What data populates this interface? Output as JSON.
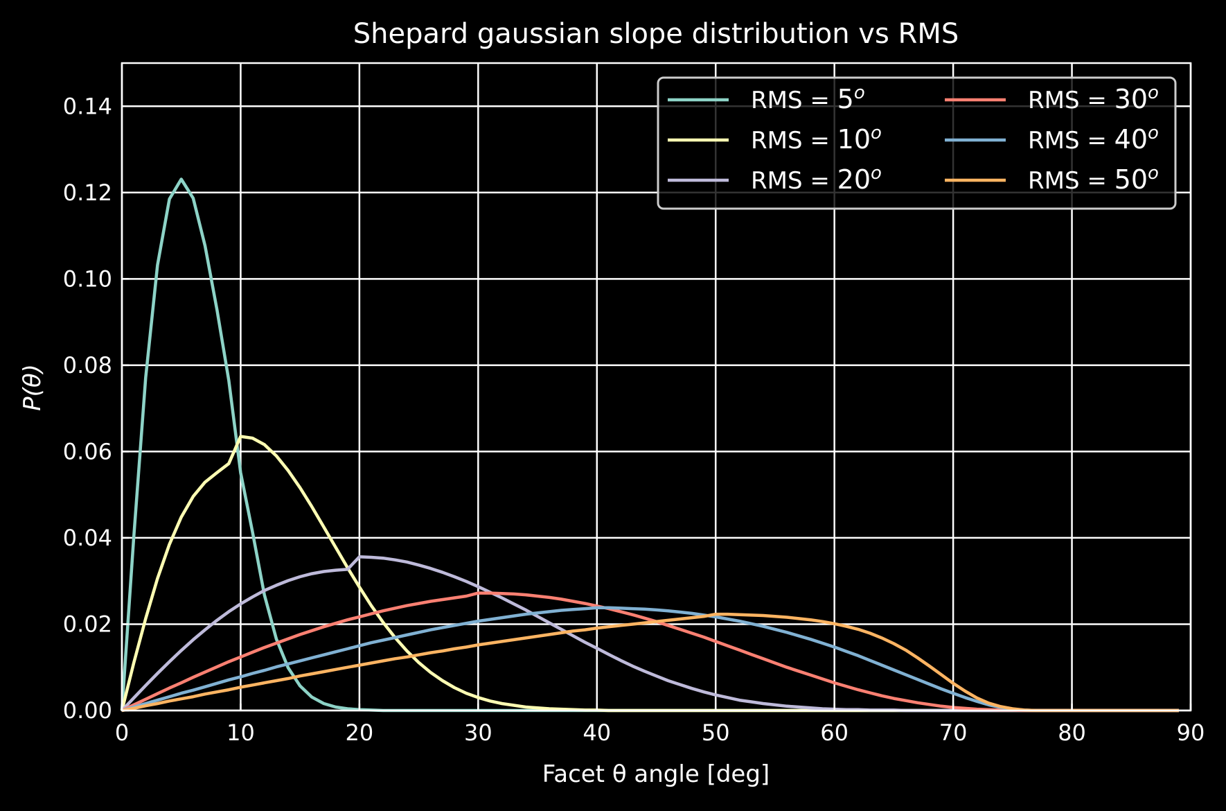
{
  "chart_data": {
    "type": "line",
    "title": "Shepard gaussian slope distribution vs RMS",
    "xlabel": "Facet θ angle [deg]",
    "ylabel": "P(θ)",
    "xlim": [
      0,
      90
    ],
    "ylim": [
      0,
      0.15
    ],
    "xticks": [
      0,
      10,
      20,
      30,
      40,
      50,
      60,
      70,
      80,
      90
    ],
    "xtick_labels": [
      "0",
      "10",
      "20",
      "30",
      "40",
      "50",
      "60",
      "70",
      "80",
      "90"
    ],
    "yticks": [
      0,
      0.02,
      0.04,
      0.06,
      0.08,
      0.1,
      0.12,
      0.14
    ],
    "ytick_labels": [
      "0.00",
      "0.02",
      "0.04",
      "0.06",
      "0.08",
      "0.10",
      "0.12",
      "0.14"
    ],
    "grid": true,
    "legend_position": "top-right",
    "legend_columns": 2,
    "x": [
      0,
      1,
      2,
      3,
      4,
      5,
      6,
      7,
      8,
      9,
      10,
      11,
      12,
      13,
      14,
      15,
      16,
      17,
      18,
      19,
      20,
      21,
      22,
      23,
      24,
      25,
      26,
      27,
      28,
      29,
      30,
      31,
      32,
      33,
      34,
      35,
      36,
      37,
      38,
      39,
      40,
      41,
      42,
      43,
      44,
      45,
      46,
      47,
      48,
      49,
      50,
      51,
      52,
      53,
      54,
      55,
      56,
      57,
      58,
      59,
      60,
      61,
      62,
      63,
      64,
      65,
      66,
      67,
      68,
      69,
      70,
      71,
      72,
      73,
      74,
      75,
      76,
      77,
      78,
      79,
      80,
      81,
      82,
      83,
      84,
      85,
      86,
      87,
      88,
      89
    ],
    "series": [
      {
        "name": "RMS = 5",
        "legend_prefix": "RMS = ",
        "legend_value": "5",
        "legend_superscript": "o",
        "color": "#8dd3c7",
        "values": [
          0.0,
          0.0401,
          0.0771,
          0.1032,
          0.1185,
          0.1231,
          0.1187,
          0.1077,
          0.0929,
          0.0765,
          0.0551,
          0.0413,
          0.0268,
          0.0166,
          0.0099,
          0.0057,
          0.0031,
          0.0016,
          0.0008,
          0.0004,
          0.0002,
          0.0001,
          0.0,
          0.0,
          0.0,
          0.0,
          0.0,
          0.0,
          0.0,
          0.0,
          0.0,
          0.0,
          0.0,
          0.0,
          0.0,
          0.0,
          0.0,
          0.0,
          0.0,
          0.0,
          0.0,
          0.0,
          0.0,
          0.0,
          0.0,
          0.0,
          0.0,
          0.0,
          0.0,
          0.0,
          0.0,
          0.0,
          0.0,
          0.0,
          0.0,
          0.0,
          0.0,
          0.0,
          0.0,
          0.0,
          0.0,
          0.0,
          0.0,
          0.0,
          0.0,
          0.0,
          0.0,
          0.0,
          0.0,
          0.0,
          0.0,
          0.0,
          0.0,
          0.0,
          0.0,
          0.0,
          0.0,
          0.0,
          0.0,
          0.0,
          0.0,
          0.0,
          0.0,
          0.0,
          0.0,
          0.0,
          0.0,
          0.0,
          0.0,
          0.0
        ]
      },
      {
        "name": "RMS = 10",
        "legend_prefix": "RMS = ",
        "legend_value": "10",
        "legend_superscript": "o",
        "color": "#ffffb3",
        "values": [
          0.0,
          0.011,
          0.0213,
          0.0306,
          0.0385,
          0.0448,
          0.0496,
          0.0529,
          0.0551,
          0.0572,
          0.0635,
          0.0631,
          0.0616,
          0.059,
          0.0556,
          0.0516,
          0.0472,
          0.0425,
          0.0378,
          0.0331,
          0.0286,
          0.0243,
          0.0204,
          0.0169,
          0.0138,
          0.0111,
          0.0088,
          0.0069,
          0.0053,
          0.004,
          0.003,
          0.0022,
          0.0016,
          0.0012,
          0.0008,
          0.0006,
          0.0004,
          0.0003,
          0.0002,
          0.0001,
          0.0001,
          0.0,
          0.0,
          0.0,
          0.0,
          0.0,
          0.0,
          0.0,
          0.0,
          0.0,
          0.0,
          0.0,
          0.0,
          0.0,
          0.0,
          0.0,
          0.0,
          0.0,
          0.0,
          0.0,
          0.0,
          0.0,
          0.0,
          0.0,
          0.0,
          0.0,
          0.0,
          0.0,
          0.0,
          0.0,
          0.0,
          0.0,
          0.0,
          0.0,
          0.0,
          0.0,
          0.0,
          0.0,
          0.0,
          0.0,
          0.0,
          0.0,
          0.0,
          0.0,
          0.0,
          0.0,
          0.0,
          0.0,
          0.0,
          0.0
        ]
      },
      {
        "name": "RMS = 20",
        "legend_prefix": "RMS = ",
        "legend_value": "20",
        "legend_superscript": "o",
        "color": "#bebada",
        "values": [
          0.0,
          0.0029,
          0.0058,
          0.0086,
          0.0113,
          0.0139,
          0.0164,
          0.0187,
          0.0209,
          0.0229,
          0.0247,
          0.0263,
          0.0278,
          0.029,
          0.0301,
          0.031,
          0.0317,
          0.0322,
          0.0325,
          0.0327,
          0.0356,
          0.0355,
          0.0353,
          0.0349,
          0.0344,
          0.0337,
          0.0329,
          0.032,
          0.031,
          0.0299,
          0.0287,
          0.0274,
          0.0261,
          0.0247,
          0.0233,
          0.0218,
          0.0203,
          0.0188,
          0.0173,
          0.0158,
          0.0144,
          0.013,
          0.0116,
          0.0103,
          0.0091,
          0.008,
          0.0069,
          0.006,
          0.0051,
          0.0043,
          0.0036,
          0.003,
          0.0024,
          0.002,
          0.0016,
          0.0013,
          0.001,
          0.0008,
          0.0006,
          0.0004,
          0.0003,
          0.0002,
          0.0002,
          0.0001,
          0.0001,
          0.0001,
          0.0,
          0.0,
          0.0,
          0.0,
          0.0,
          0.0,
          0.0,
          0.0,
          0.0,
          0.0,
          0.0,
          0.0,
          0.0,
          0.0,
          0.0,
          0.0,
          0.0,
          0.0,
          0.0,
          0.0,
          0.0,
          0.0,
          0.0,
          0.0
        ]
      },
      {
        "name": "RMS = 30",
        "legend_prefix": "RMS = ",
        "legend_value": "30",
        "legend_superscript": "o",
        "color": "#fb8072",
        "values": [
          0.0,
          0.0013,
          0.0026,
          0.0039,
          0.0052,
          0.0064,
          0.0077,
          0.0089,
          0.0101,
          0.0113,
          0.0124,
          0.0135,
          0.0146,
          0.0156,
          0.0166,
          0.0176,
          0.0185,
          0.0194,
          0.0202,
          0.021,
          0.0217,
          0.0224,
          0.0231,
          0.0237,
          0.0243,
          0.0248,
          0.0253,
          0.0257,
          0.0261,
          0.0265,
          0.0272,
          0.0272,
          0.0271,
          0.027,
          0.0268,
          0.0265,
          0.0262,
          0.0258,
          0.0253,
          0.0248,
          0.0242,
          0.0236,
          0.0229,
          0.0222,
          0.0214,
          0.0206,
          0.0197,
          0.0188,
          0.0179,
          0.017,
          0.016,
          0.015,
          0.014,
          0.013,
          0.012,
          0.011,
          0.01,
          0.0091,
          0.0082,
          0.0073,
          0.0064,
          0.0056,
          0.0048,
          0.0041,
          0.0034,
          0.0028,
          0.0023,
          0.0018,
          0.0014,
          0.001,
          0.0007,
          0.0005,
          0.0003,
          0.0002,
          0.0001,
          0.0001,
          0.0,
          0.0,
          0.0,
          0.0,
          0.0,
          0.0,
          0.0,
          0.0,
          0.0,
          0.0,
          0.0,
          0.0,
          0.0,
          0.0
        ]
      },
      {
        "name": "RMS = 40",
        "legend_prefix": "RMS = ",
        "legend_value": "40",
        "legend_superscript": "o",
        "color": "#80b1d3",
        "values": [
          0.0,
          0.0008,
          0.0016,
          0.0024,
          0.0032,
          0.004,
          0.0047,
          0.0055,
          0.0063,
          0.0071,
          0.0078,
          0.0086,
          0.0093,
          0.0101,
          0.0108,
          0.0115,
          0.0122,
          0.0129,
          0.0136,
          0.0143,
          0.015,
          0.0157,
          0.0163,
          0.0169,
          0.0175,
          0.0181,
          0.0187,
          0.0192,
          0.0197,
          0.0202,
          0.0207,
          0.0211,
          0.0215,
          0.0219,
          0.0223,
          0.0226,
          0.0229,
          0.0232,
          0.0234,
          0.0236,
          0.0238,
          0.0238,
          0.0237,
          0.0236,
          0.0235,
          0.0233,
          0.0231,
          0.0228,
          0.0225,
          0.0221,
          0.0217,
          0.0212,
          0.0207,
          0.0201,
          0.0195,
          0.0188,
          0.0181,
          0.0173,
          0.0165,
          0.0156,
          0.0147,
          0.0137,
          0.0127,
          0.0116,
          0.0105,
          0.0094,
          0.0083,
          0.0072,
          0.0061,
          0.005,
          0.004,
          0.003,
          0.0021,
          0.0013,
          0.0007,
          0.0003,
          0.0001,
          0.0,
          0.0,
          0.0,
          0.0,
          0.0,
          0.0,
          0.0,
          0.0,
          0.0,
          0.0,
          0.0,
          0.0,
          0.0
        ]
      },
      {
        "name": "RMS = 50",
        "legend_prefix": "RMS = ",
        "legend_value": "50",
        "legend_superscript": "o",
        "color": "#fdb462",
        "values": [
          0.0,
          0.0005,
          0.0011,
          0.0016,
          0.0022,
          0.0027,
          0.0032,
          0.0038,
          0.0043,
          0.0048,
          0.0054,
          0.0059,
          0.0064,
          0.0069,
          0.0074,
          0.008,
          0.0085,
          0.009,
          0.0095,
          0.01,
          0.0105,
          0.011,
          0.0115,
          0.012,
          0.0124,
          0.0129,
          0.0134,
          0.0138,
          0.0143,
          0.0147,
          0.0152,
          0.0156,
          0.016,
          0.0164,
          0.0168,
          0.0172,
          0.0176,
          0.018,
          0.0184,
          0.0187,
          0.0191,
          0.0194,
          0.0197,
          0.02,
          0.0203,
          0.0206,
          0.0209,
          0.0212,
          0.0215,
          0.0218,
          0.0223,
          0.0223,
          0.0222,
          0.0221,
          0.022,
          0.0218,
          0.0216,
          0.0213,
          0.021,
          0.0206,
          0.0201,
          0.0195,
          0.0188,
          0.0179,
          0.0168,
          0.0155,
          0.014,
          0.0122,
          0.0103,
          0.0083,
          0.0063,
          0.0045,
          0.0029,
          0.0017,
          0.0009,
          0.0004,
          0.0001,
          0.0,
          0.0,
          0.0,
          0.0,
          0.0,
          0.0,
          0.0,
          0.0,
          0.0,
          0.0,
          0.0,
          0.0,
          0.0
        ]
      }
    ]
  }
}
